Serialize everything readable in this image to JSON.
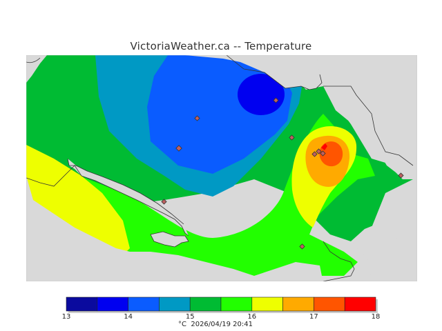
{
  "title": "VictoriaWeather.ca -- Temperature",
  "footer": {
    "unit": "°C",
    "timestamp": "2026/04/19 20:41"
  },
  "legend": {
    "bins": [
      {
        "color": "#0a0a9e"
      },
      {
        "color": "#0000f0"
      },
      {
        "color": "#0a5cff"
      },
      {
        "color": "#0099c4"
      },
      {
        "color": "#00bb33"
      },
      {
        "color": "#22ff00"
      },
      {
        "color": "#eeff00"
      },
      {
        "color": "#ffaa00"
      },
      {
        "color": "#ff5500"
      },
      {
        "color": "#ff0000"
      }
    ],
    "ticks": [
      "13",
      "14",
      "15",
      "16",
      "17",
      "18"
    ]
  },
  "colors": {
    "land_background": "#d9d9d9",
    "station_marker": "#c06060",
    "outline": "#333333"
  },
  "map": {
    "station_count": 10
  }
}
